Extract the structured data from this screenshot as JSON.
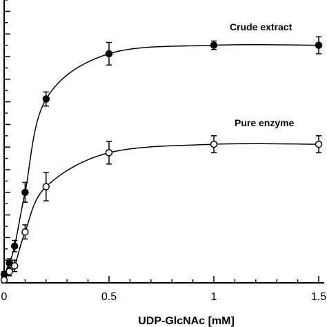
{
  "chart_data": {
    "type": "line",
    "xlabel": "UDP-GlcNAc [mM]",
    "ylabel": "",
    "xlim": [
      0,
      1.5
    ],
    "ylim": [
      0,
      10
    ],
    "x_ticks": [
      0,
      0.5,
      1,
      1.5
    ],
    "x_tick_labels": [
      "0",
      "0.5",
      "1",
      "1.5"
    ],
    "y_tick_count": 25,
    "grid": false,
    "series": [
      {
        "name": "Crude extract",
        "marker": "filled-circle",
        "color": "#000000",
        "x": [
          0,
          0.025,
          0.05,
          0.1,
          0.2,
          0.5,
          1.0,
          1.5
        ],
        "y": [
          0.3,
          0.7,
          1.3,
          3.2,
          6.5,
          8.1,
          8.4,
          8.4
        ],
        "err": [
          0.1,
          0.15,
          0.2,
          0.35,
          0.25,
          0.4,
          0.15,
          0.3
        ]
      },
      {
        "name": "Pure enzyme",
        "marker": "open-circle",
        "color": "#000000",
        "x": [
          0,
          0.025,
          0.05,
          0.1,
          0.2,
          0.5,
          1.0,
          1.5
        ],
        "y": [
          0.1,
          0.4,
          0.6,
          1.8,
          3.4,
          4.6,
          4.9,
          4.9
        ],
        "err": [
          0.1,
          0.15,
          0.2,
          0.25,
          0.5,
          0.4,
          0.3,
          0.3
        ]
      }
    ]
  }
}
